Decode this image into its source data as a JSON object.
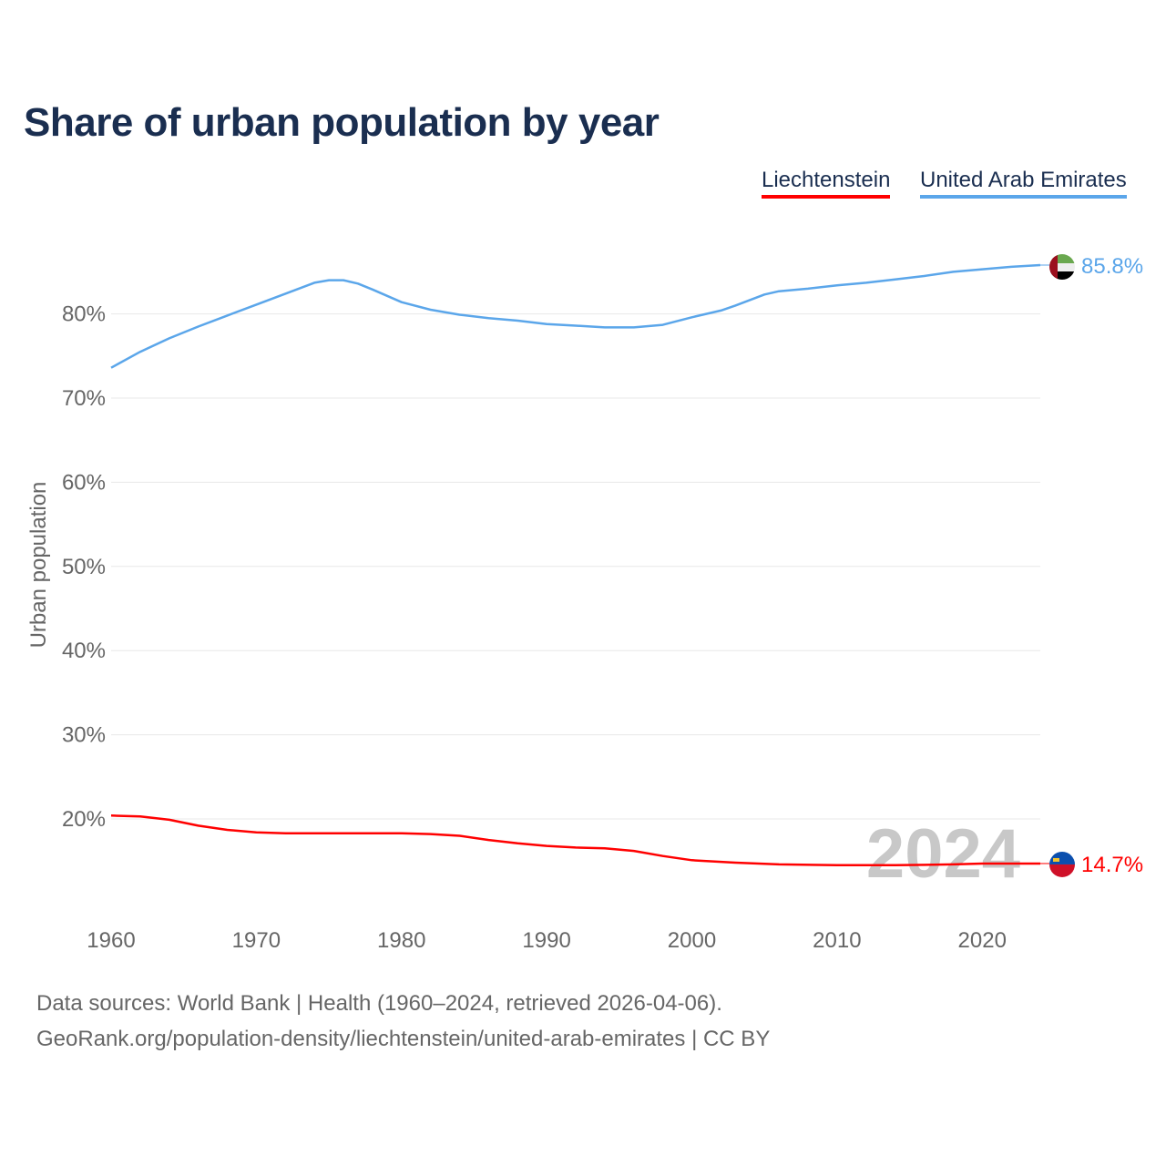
{
  "chart_data": {
    "type": "line",
    "title": "Share of urban population by year",
    "ylabel": "Urban population",
    "xlabel": "",
    "ylim": [
      10,
      90
    ],
    "xlim": [
      1960,
      2024
    ],
    "y_ticks": [
      "20%",
      "30%",
      "40%",
      "50%",
      "60%",
      "70%",
      "80%"
    ],
    "y_tick_values": [
      20,
      30,
      40,
      50,
      60,
      70,
      80
    ],
    "x_ticks": [
      "1960",
      "1970",
      "1980",
      "1990",
      "2000",
      "2010",
      "2020"
    ],
    "x_tick_values": [
      1960,
      1970,
      1980,
      1990,
      2000,
      2010,
      2020
    ],
    "grid": true,
    "legend_placement": "top-right",
    "watermark_year": "2024",
    "series": [
      {
        "name": "Liechtenstein",
        "color": "#ff0000",
        "end_label": "14.7%",
        "x": [
          1960,
          1962,
          1964,
          1966,
          1968,
          1970,
          1972,
          1980,
          1982,
          1984,
          1986,
          1988,
          1990,
          1992,
          1994,
          1996,
          1998,
          2000,
          2003,
          2006,
          2010,
          2014,
          2018,
          2020,
          2024
        ],
        "y": [
          20.4,
          20.3,
          19.9,
          19.2,
          18.7,
          18.4,
          18.3,
          18.3,
          18.2,
          18.0,
          17.5,
          17.1,
          16.8,
          16.6,
          16.5,
          16.2,
          15.6,
          15.1,
          14.8,
          14.6,
          14.5,
          14.5,
          14.6,
          14.7,
          14.7
        ]
      },
      {
        "name": "United Arab Emirates",
        "color": "#5ba6ea",
        "end_label": "85.8%",
        "x": [
          1960,
          1962,
          1964,
          1966,
          1968,
          1970,
          1972,
          1974,
          1975,
          1976,
          1977,
          1978,
          1980,
          1982,
          1984,
          1986,
          1988,
          1990,
          1992,
          1994,
          1996,
          1998,
          2000,
          2002,
          2003,
          2005,
          2006,
          2008,
          2010,
          2012,
          2014,
          2016,
          2018,
          2020,
          2022,
          2024
        ],
        "y": [
          73.6,
          75.5,
          77.1,
          78.5,
          79.8,
          81.1,
          82.4,
          83.7,
          84.0,
          84.0,
          83.6,
          82.9,
          81.4,
          80.5,
          79.9,
          79.5,
          79.2,
          78.8,
          78.6,
          78.4,
          78.4,
          78.7,
          79.6,
          80.4,
          81.0,
          82.3,
          82.7,
          83.0,
          83.4,
          83.7,
          84.1,
          84.5,
          85.0,
          85.3,
          85.6,
          85.8
        ]
      }
    ]
  },
  "footer": {
    "line1": "Data sources: World Bank | Health (1960–2024, retrieved 2026-04-06).",
    "line2": "GeoRank.org/population-density/liechtenstein/united-arab-emirates | CC BY"
  }
}
